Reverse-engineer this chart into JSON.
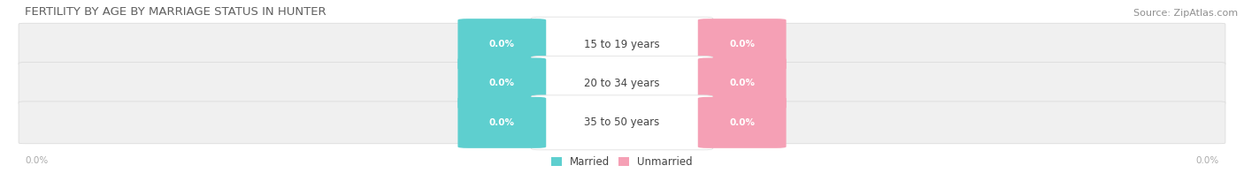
{
  "title": "FERTILITY BY AGE BY MARRIAGE STATUS IN HUNTER",
  "source_text": "Source: ZipAtlas.com",
  "categories": [
    "15 to 19 years",
    "20 to 34 years",
    "35 to 50 years"
  ],
  "married_values": [
    0.0,
    0.0,
    0.0
  ],
  "unmarried_values": [
    0.0,
    0.0,
    0.0
  ],
  "married_color": "#5ecfcf",
  "unmarried_color": "#f5a0b5",
  "row_bg_color": "#f0f0f0",
  "row_edge_color": "#d8d8d8",
  "center_box_color": "#ffffff",
  "center_box_edge": "#e0e0e0",
  "title_fontsize": 9.5,
  "source_fontsize": 8,
  "label_fontsize": 8.5,
  "value_fontsize": 7.5,
  "legend_married": "Married",
  "legend_unmarried": "Unmarried",
  "axis_label_left": "0.0%",
  "axis_label_right": "0.0%",
  "background_color": "#ffffff",
  "title_color": "#606060",
  "source_color": "#909090",
  "label_color": "#444444",
  "axis_tick_color": "#aaaaaa"
}
